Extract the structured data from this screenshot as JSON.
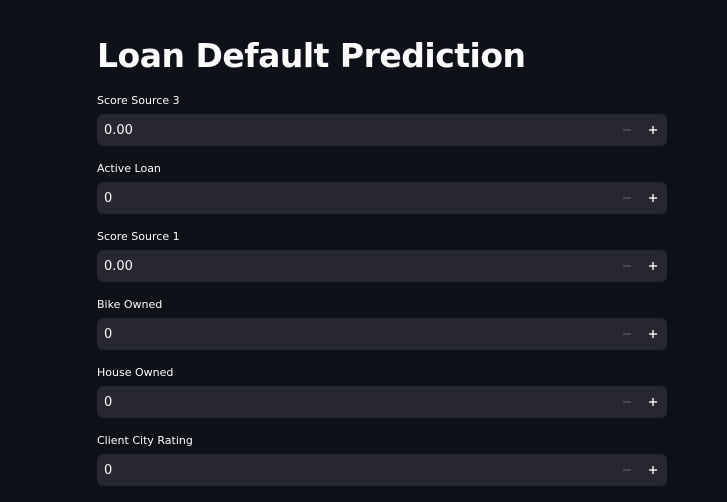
{
  "page": {
    "title": "Loan Default Prediction"
  },
  "fields": [
    {
      "label": "Score Source 3",
      "value": "0.00"
    },
    {
      "label": "Active Loan",
      "value": "0"
    },
    {
      "label": "Score Source 1",
      "value": "0.00"
    },
    {
      "label": "Bike Owned",
      "value": "0"
    },
    {
      "label": "House Owned",
      "value": "0"
    },
    {
      "label": "Client City Rating",
      "value": "0"
    }
  ],
  "icons": {
    "decrement": "minus-icon",
    "increment": "plus-icon"
  },
  "colors": {
    "background": "#0e1117",
    "input_background": "#262730",
    "text": "#fafafa",
    "disabled_icon": "#5c5f6b"
  }
}
